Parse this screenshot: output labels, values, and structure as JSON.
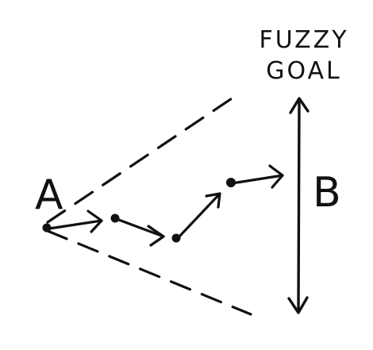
{
  "labels": {
    "start": "A",
    "end": "B",
    "goal_line1": "FUZZY",
    "goal_line2": "GOAL"
  }
}
